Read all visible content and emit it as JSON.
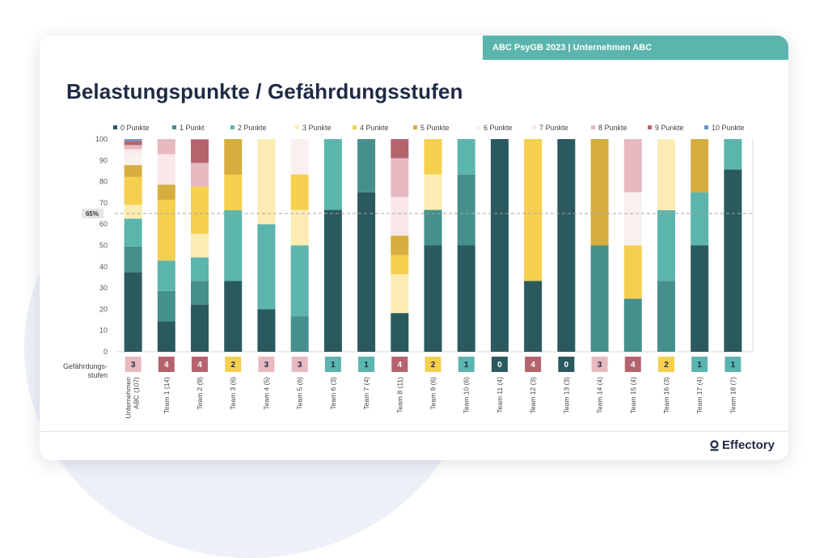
{
  "header": {
    "banner": "ABC PsyGB 2023 | Unternehmen ABC",
    "title": "Belastungspunkte / Gefährdungsstufen"
  },
  "footer": {
    "logo_text": "Effectory"
  },
  "chart_data": {
    "type": "bar",
    "stacked": true,
    "title": "Belastungspunkte / Gefährdungsstufen",
    "xlabel": "",
    "ylabel": "",
    "ylim": [
      0,
      100
    ],
    "yticks": [
      0,
      10,
      20,
      30,
      40,
      50,
      60,
      70,
      80,
      90,
      100
    ],
    "reference_line": {
      "value": 65,
      "label": "65%"
    },
    "row_label": "Gefährdungs-\nstufen",
    "categories": [
      "Unternehmen ABC (107)",
      "Team 1 (14)",
      "Team 2 (9)",
      "Team 3 (6)",
      "Team 4 (5)",
      "Team 5 (6)",
      "Team 6 (3)",
      "Team 7 (4)",
      "Team 8 (11)",
      "Team 9 (6)",
      "Team 10 (6)",
      "Team 11 (4)",
      "Team 12 (3)",
      "Team 13 (3)",
      "Team 14 (4)",
      "Team 15 (4)",
      "Team 16 (3)",
      "Team 17 (4)",
      "Team 18 (7)"
    ],
    "levels": [
      3,
      4,
      4,
      2,
      3,
      3,
      1,
      1,
      4,
      2,
      1,
      0,
      4,
      0,
      3,
      4,
      2,
      1,
      1
    ],
    "level_colors": {
      "0": "#2a5a5f",
      "1": "#5bb5ad",
      "2": "#f5d04e",
      "3": "#e7b9c0",
      "4": "#b5646e"
    },
    "series": [
      {
        "name": "0 Punkte",
        "color": "#2a5a5f",
        "values": [
          37.4,
          14.3,
          22.2,
          33.3,
          20,
          0,
          66.7,
          75,
          18.2,
          50,
          50,
          100,
          33.3,
          100,
          0,
          0,
          0,
          50,
          85.7
        ]
      },
      {
        "name": "1 Punkt",
        "color": "#45908d",
        "values": [
          12.1,
          14.3,
          11.1,
          0,
          0,
          16.7,
          0,
          25,
          0,
          16.7,
          33.3,
          0,
          0,
          0,
          50,
          25,
          33.3,
          0,
          0
        ]
      },
      {
        "name": "2 Punkte",
        "color": "#5bb5ad",
        "values": [
          13.1,
          14.3,
          11.1,
          33.3,
          40,
          33.3,
          33.3,
          0,
          0,
          0,
          16.7,
          0,
          0,
          0,
          0,
          0,
          33.3,
          25,
          14.3
        ]
      },
      {
        "name": "3 Punkte",
        "color": "#fbecb3",
        "values": [
          6.5,
          0,
          11.1,
          0,
          40,
          16.7,
          0,
          0,
          18.2,
          16.7,
          0,
          0,
          0,
          0,
          0,
          0,
          33.3,
          0,
          0
        ]
      },
      {
        "name": "4 Punkte",
        "color": "#f5d04e",
        "values": [
          13.1,
          28.6,
          22.2,
          16.7,
          0,
          16.7,
          0,
          0,
          9.1,
          16.7,
          0,
          0,
          66.7,
          0,
          0,
          25,
          0,
          0,
          0
        ]
      },
      {
        "name": "5 Punkte",
        "color": "#d6ad3e",
        "values": [
          5.6,
          7.1,
          0,
          16.7,
          0,
          0,
          0,
          0,
          9.1,
          0,
          0,
          0,
          0,
          0,
          50,
          0,
          0,
          25,
          0
        ]
      },
      {
        "name": "6 Punkte",
        "color": "#f9f0f0",
        "values": [
          5.6,
          0,
          0,
          0,
          0,
          16.7,
          0,
          0,
          0,
          0,
          0,
          0,
          0,
          0,
          0,
          25,
          0,
          0,
          0
        ]
      },
      {
        "name": "7 Punkte",
        "color": "#f9e7e9",
        "values": [
          1.9,
          14.3,
          0,
          0,
          0,
          0,
          0,
          0,
          18.2,
          0,
          0,
          0,
          0,
          0,
          0,
          0,
          0,
          0,
          0
        ]
      },
      {
        "name": "8 Punkte",
        "color": "#e7b9c0",
        "values": [
          1.9,
          7.1,
          11.1,
          0,
          0,
          0,
          0,
          0,
          18.2,
          0,
          0,
          0,
          0,
          0,
          0,
          25,
          0,
          0,
          0
        ]
      },
      {
        "name": "9 Punkte",
        "color": "#b5646e",
        "values": [
          1.9,
          0,
          11.1,
          0,
          0,
          0,
          0,
          0,
          9.1,
          0,
          0,
          0,
          0,
          0,
          0,
          0,
          0,
          0,
          0
        ]
      },
      {
        "name": "10 Punkte",
        "color": "#6c93c8",
        "values": [
          0.9,
          0,
          0,
          0,
          0,
          0,
          0,
          0,
          0,
          0,
          0,
          0,
          0,
          0,
          0,
          0,
          0,
          0,
          0
        ]
      }
    ]
  }
}
